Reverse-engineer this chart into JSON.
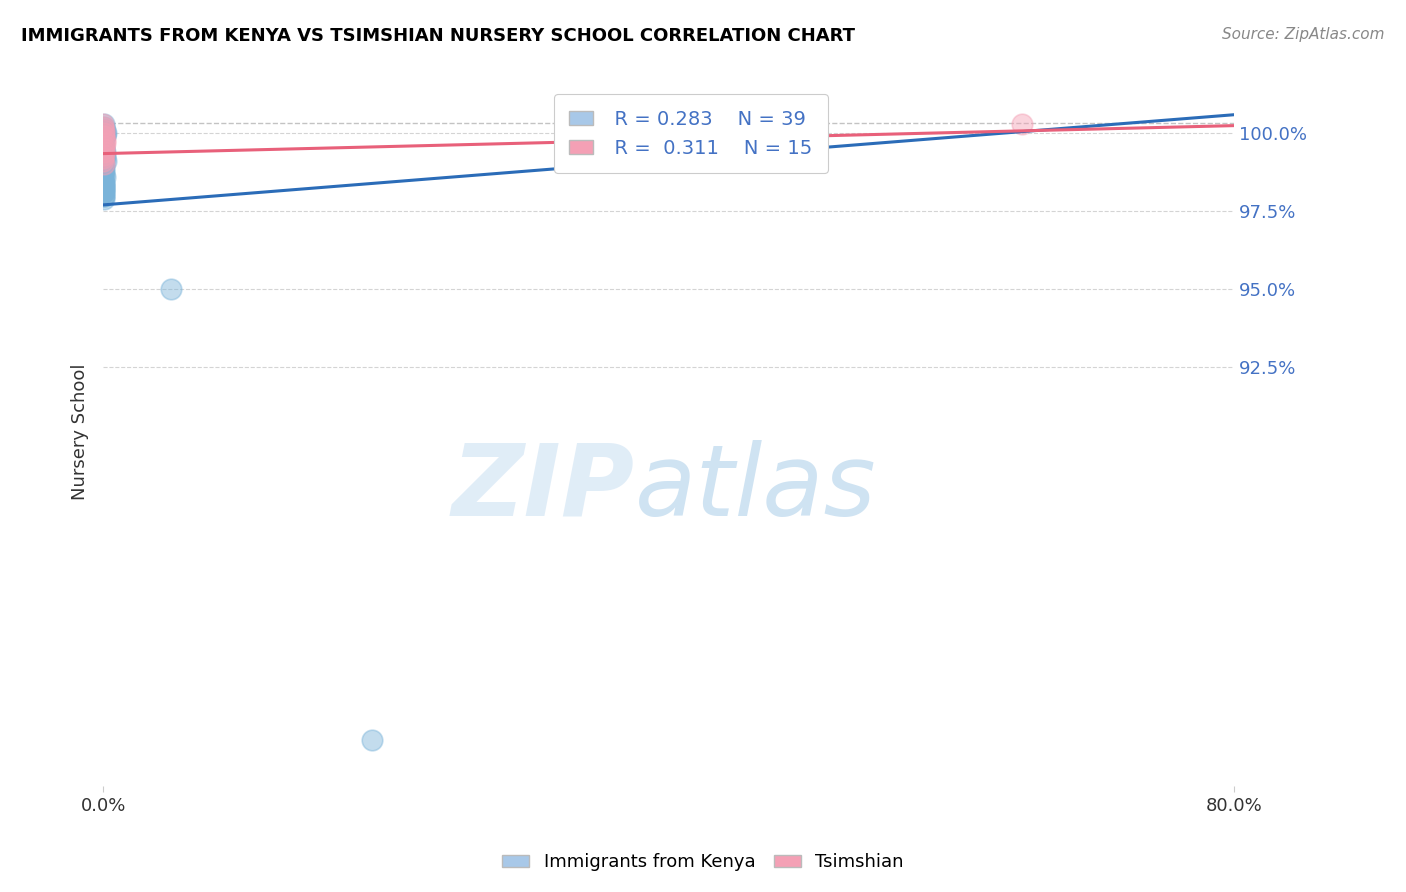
{
  "title": "IMMIGRANTS FROM KENYA VS TSIMSHIAN NURSERY SCHOOL CORRELATION CHART",
  "source": "Source: ZipAtlas.com",
  "ylabel": "Nursery School",
  "xlim": [
    0.0,
    80.0
  ],
  "ylim": [
    79.0,
    101.8
  ],
  "blue_R": 0.283,
  "blue_N": 39,
  "pink_R": 0.311,
  "pink_N": 15,
  "blue_color": "#7ab3d9",
  "pink_color": "#f4a0b5",
  "blue_line_color": "#2b6cb8",
  "pink_line_color": "#e8607a",
  "ytick_vals": [
    92.5,
    95.0,
    97.5,
    100.0
  ],
  "ytick_labels": [
    "92.5%",
    "95.0%",
    "97.5%",
    "100.0%"
  ],
  "dashed_line_y": 100.35,
  "blue_line": {
    "x0": 0.0,
    "y0": 97.7,
    "x1": 80.0,
    "y1": 100.6
  },
  "pink_line": {
    "x0": 0.0,
    "y0": 99.35,
    "x1": 80.0,
    "y1": 100.25
  },
  "blue_scatter_x": [
    0.04,
    0.06,
    0.07,
    0.09,
    0.1,
    0.12,
    0.14,
    0.16,
    0.18,
    0.05,
    0.08,
    0.11,
    0.13,
    0.15,
    0.17,
    0.03,
    0.05,
    0.07,
    0.09,
    0.11,
    0.04,
    0.06,
    0.08,
    0.02,
    0.03,
    0.04,
    0.05,
    0.06,
    0.07,
    0.08,
    0.01,
    0.02,
    0.03,
    0.015,
    0.02,
    0.025,
    0.03,
    4.8,
    19.0
  ],
  "blue_scatter_y": [
    100.3,
    100.2,
    100.1,
    100.0,
    99.9,
    100.1,
    100.0,
    99.95,
    100.0,
    99.6,
    99.5,
    99.4,
    99.3,
    99.2,
    99.1,
    99.0,
    98.9,
    98.8,
    98.7,
    98.6,
    98.3,
    98.2,
    98.1,
    98.5,
    98.4,
    98.3,
    98.2,
    98.1,
    98.0,
    97.9,
    98.6,
    98.5,
    98.4,
    98.3,
    98.2,
    98.1,
    98.0,
    95.0,
    80.5
  ],
  "pink_scatter_x": [
    0.0,
    0.02,
    0.04,
    0.06,
    0.08,
    0.1,
    0.12,
    0.03,
    0.05,
    0.07,
    0.09,
    0.01,
    0.02,
    0.03,
    65.0
  ],
  "pink_scatter_y": [
    100.3,
    100.2,
    100.1,
    100.0,
    99.9,
    99.8,
    99.7,
    99.6,
    99.5,
    99.4,
    99.3,
    99.2,
    99.1,
    99.0,
    100.3
  ]
}
